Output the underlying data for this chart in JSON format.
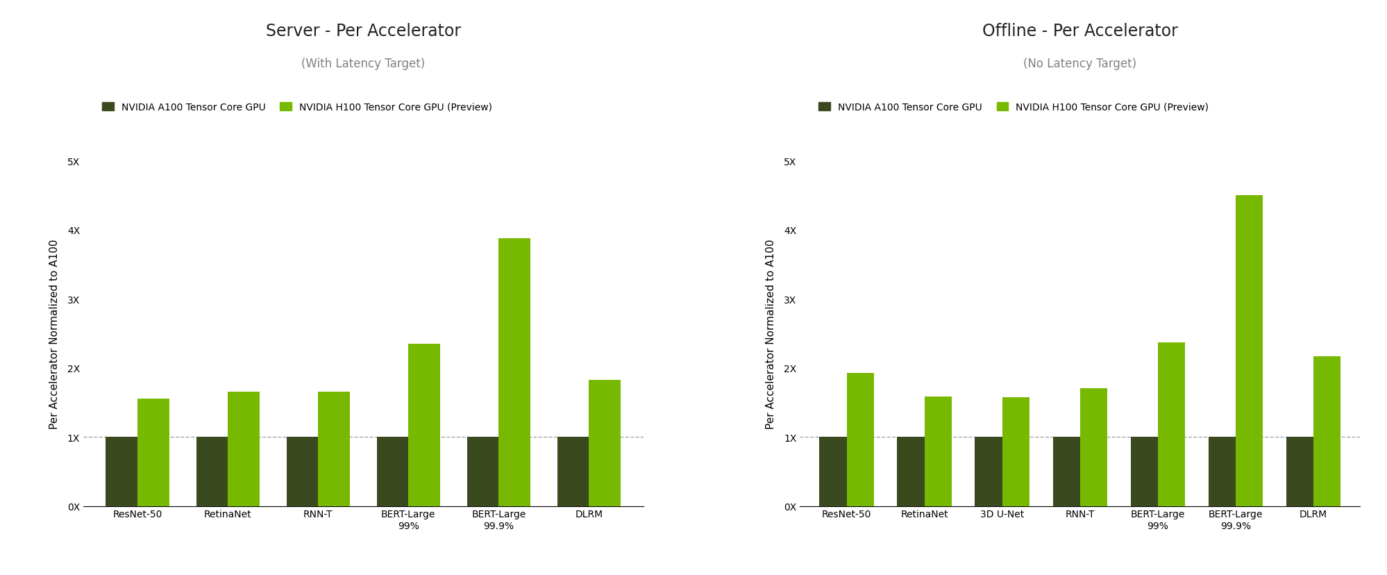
{
  "left_chart": {
    "title": "Server - Per Accelerator",
    "subtitle": "(With Latency Target)",
    "categories": [
      "ResNet-50",
      "RetinaNet",
      "RNN-T",
      "BERT-Large\n99%",
      "BERT-Large\n99.9%",
      "DLRM"
    ],
    "a100_values": [
      1.0,
      1.0,
      1.0,
      1.0,
      1.0,
      1.0
    ],
    "h100_values": [
      1.55,
      1.65,
      1.65,
      2.35,
      3.88,
      1.82
    ],
    "ylim": [
      0,
      5.0
    ],
    "yticks": [
      0,
      1,
      2,
      3,
      4,
      5
    ],
    "ytick_labels": [
      "0X",
      "1X",
      "2X",
      "3X",
      "4X",
      "5X"
    ],
    "ylabel": "Per Accelerator Normalized to A100"
  },
  "right_chart": {
    "title": "Offline - Per Accelerator",
    "subtitle": "(No Latency Target)",
    "categories": [
      "ResNet-50",
      "RetinaNet",
      "3D U-Net",
      "RNN-T",
      "BERT-Large\n99%",
      "BERT-Large\n99.9%",
      "DLRM"
    ],
    "a100_values": [
      1.0,
      1.0,
      1.0,
      1.0,
      1.0,
      1.0,
      1.0
    ],
    "h100_values": [
      1.93,
      1.58,
      1.57,
      1.7,
      2.37,
      4.5,
      2.17
    ],
    "ylim": [
      0,
      5.0
    ],
    "yticks": [
      0,
      1,
      2,
      3,
      4,
      5
    ],
    "ytick_labels": [
      "0X",
      "1X",
      "2X",
      "3X",
      "4X",
      "5X"
    ],
    "ylabel": "Per Accelerator Normalized to A100"
  },
  "color_a100": "#3b4a1e",
  "color_h100": "#76b900",
  "legend_a100": "NVIDIA A100 Tensor Core GPU",
  "legend_h100": "NVIDIA H100 Tensor Core GPU (Preview)",
  "background_color": "#ffffff",
  "bar_width": 0.35,
  "dashed_line_y": 1.0,
  "title_fontsize": 17,
  "subtitle_fontsize": 12,
  "ylabel_fontsize": 11,
  "tick_fontsize": 10,
  "legend_fontsize": 10
}
